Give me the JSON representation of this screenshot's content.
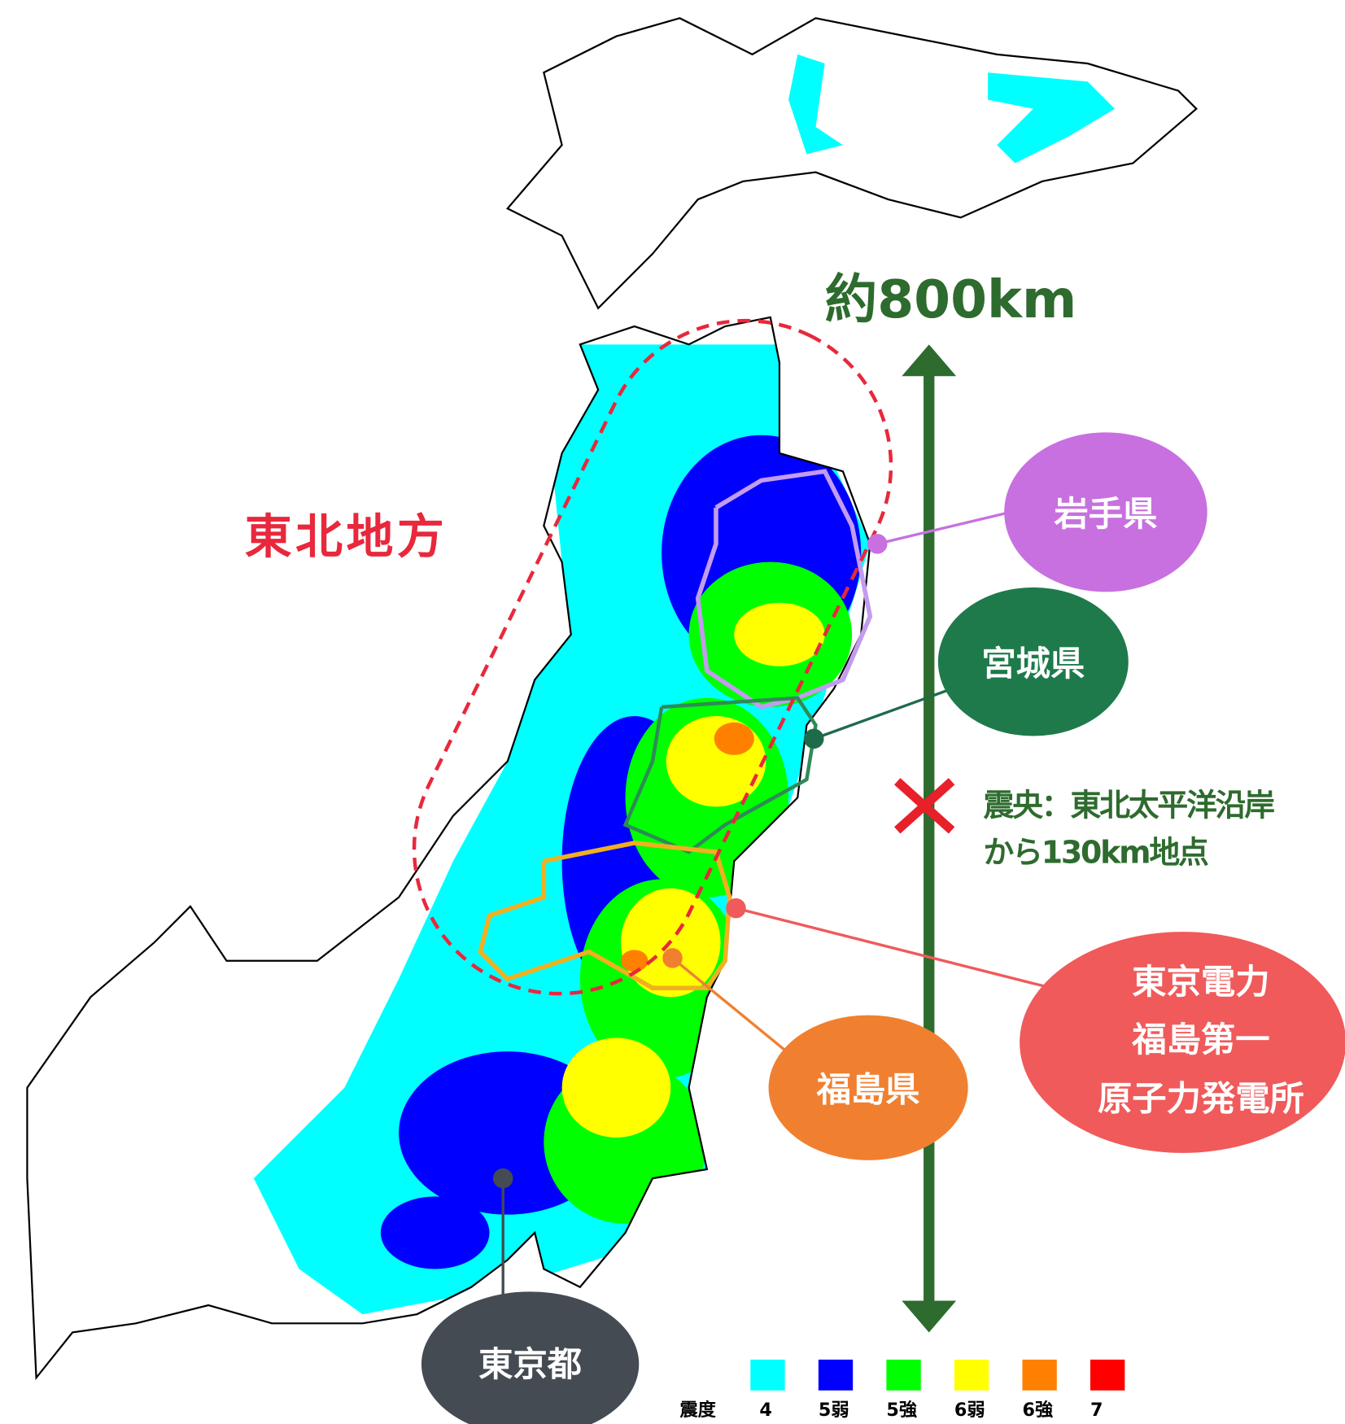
{
  "distance_label": "約800km",
  "region_label": "東北地方",
  "callouts": {
    "iwate": "岩手県",
    "miyagi": "宮城県",
    "fukushima": "福島県",
    "tokyo": "東京都",
    "plant": [
      "東京電力",
      "福島第一",
      "原子力発電所"
    ]
  },
  "epicenter": [
    "震央：東北太平洋沿岸",
    "から130km地点"
  ],
  "legend": {
    "title": "震度",
    "items": [
      {
        "label": "4",
        "color": "#00ffff"
      },
      {
        "label": "5弱",
        "color": "#0000ff"
      },
      {
        "label": "5強",
        "color": "#00ff00"
      },
      {
        "label": "6弱",
        "color": "#ffff00"
      },
      {
        "label": "6強",
        "color": "#ff8000"
      },
      {
        "label": "7",
        "color": "#ff0000"
      }
    ]
  }
}
